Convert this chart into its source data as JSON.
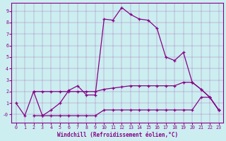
{
  "background_color": "#cceef0",
  "line_color": "#880088",
  "xlabel": "Windchill (Refroidissement éolien,°C)",
  "xlim": [
    -0.5,
    23.5
  ],
  "ylim": [
    -0.7,
    9.7
  ],
  "ytick_labels": [
    "-0",
    "1",
    "2",
    "3",
    "4",
    "5",
    "6",
    "7",
    "8",
    "9"
  ],
  "ytick_vals": [
    0,
    1,
    2,
    3,
    4,
    5,
    6,
    7,
    8,
    9
  ],
  "xtick_vals": [
    0,
    1,
    2,
    3,
    4,
    5,
    6,
    7,
    8,
    9,
    10,
    11,
    12,
    13,
    14,
    15,
    16,
    17,
    18,
    19,
    20,
    21,
    22,
    23
  ],
  "line1_x": [
    0,
    1,
    2,
    3,
    4,
    5,
    6,
    7,
    8,
    9,
    10,
    11,
    12,
    13,
    14,
    15,
    16,
    17,
    18,
    19,
    20,
    21,
    22,
    23
  ],
  "line1_y": [
    1.0,
    -0.1,
    2.0,
    -0.1,
    0.4,
    1.0,
    2.1,
    2.5,
    1.7,
    1.7,
    8.3,
    8.2,
    9.3,
    8.7,
    8.3,
    8.2,
    7.5,
    5.0,
    4.7,
    5.4,
    2.8,
    2.2,
    1.5,
    0.4
  ],
  "line2_x": [
    2,
    3,
    4,
    5,
    6,
    7,
    8,
    9,
    10,
    11,
    12,
    13,
    14,
    15,
    16,
    17,
    18,
    19,
    20,
    21,
    22,
    23
  ],
  "line2_y": [
    2.0,
    2.0,
    2.0,
    2.0,
    2.0,
    2.0,
    2.0,
    2.0,
    2.2,
    2.3,
    2.4,
    2.5,
    2.5,
    2.5,
    2.5,
    2.5,
    2.5,
    2.8,
    2.8,
    2.2,
    1.5,
    0.4
  ],
  "line3_x": [
    2,
    3,
    4,
    5,
    6,
    7,
    8,
    9,
    10,
    11,
    12,
    13,
    14,
    15,
    16,
    17,
    18,
    19,
    20,
    21,
    22,
    23
  ],
  "line3_y": [
    -0.1,
    -0.1,
    -0.1,
    -0.1,
    -0.1,
    -0.1,
    -0.1,
    -0.1,
    0.4,
    0.4,
    0.4,
    0.4,
    0.4,
    0.4,
    0.4,
    0.4,
    0.4,
    0.4,
    0.4,
    1.5,
    1.5,
    0.4
  ]
}
